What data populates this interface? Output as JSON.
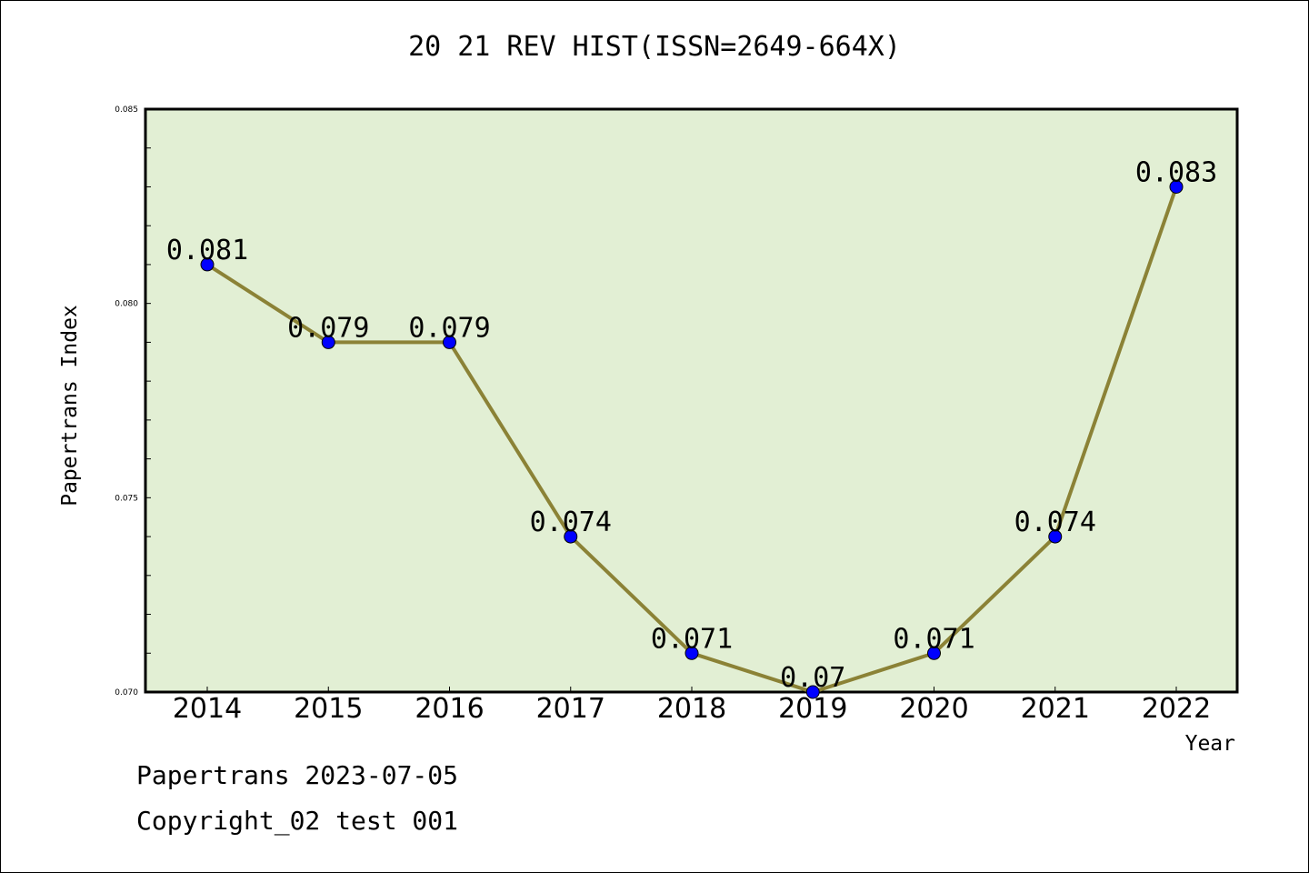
{
  "chart_data": {
    "type": "line",
    "title": "20 21 REV HIST(ISSN=2649-664X)",
    "xlabel": "Year",
    "ylabel": "Papertrans Index",
    "categories": [
      "2014",
      "2015",
      "2016",
      "2017",
      "2018",
      "2019",
      "2020",
      "2021",
      "2022"
    ],
    "series": [
      {
        "values": [
          0.081,
          0.079,
          0.079,
          0.074,
          0.071,
          0.07,
          0.071,
          0.074,
          0.083
        ],
        "labels": [
          "0.081",
          "0.079",
          "0.079",
          "0.074",
          "0.071",
          "0.07",
          "0.071",
          "0.074",
          "0.083"
        ]
      }
    ],
    "ylim": [
      0.07,
      0.085
    ],
    "yticks": [
      "0.070",
      "0.075",
      "0.080",
      "0.085"
    ],
    "grid": false,
    "colors": {
      "plot_background": "#e2efd4",
      "line": "#8b8236",
      "marker": "#0000ff"
    }
  },
  "footer": {
    "line1": "Papertrans 2023-07-05",
    "line2": "Copyright_02 test 001"
  }
}
